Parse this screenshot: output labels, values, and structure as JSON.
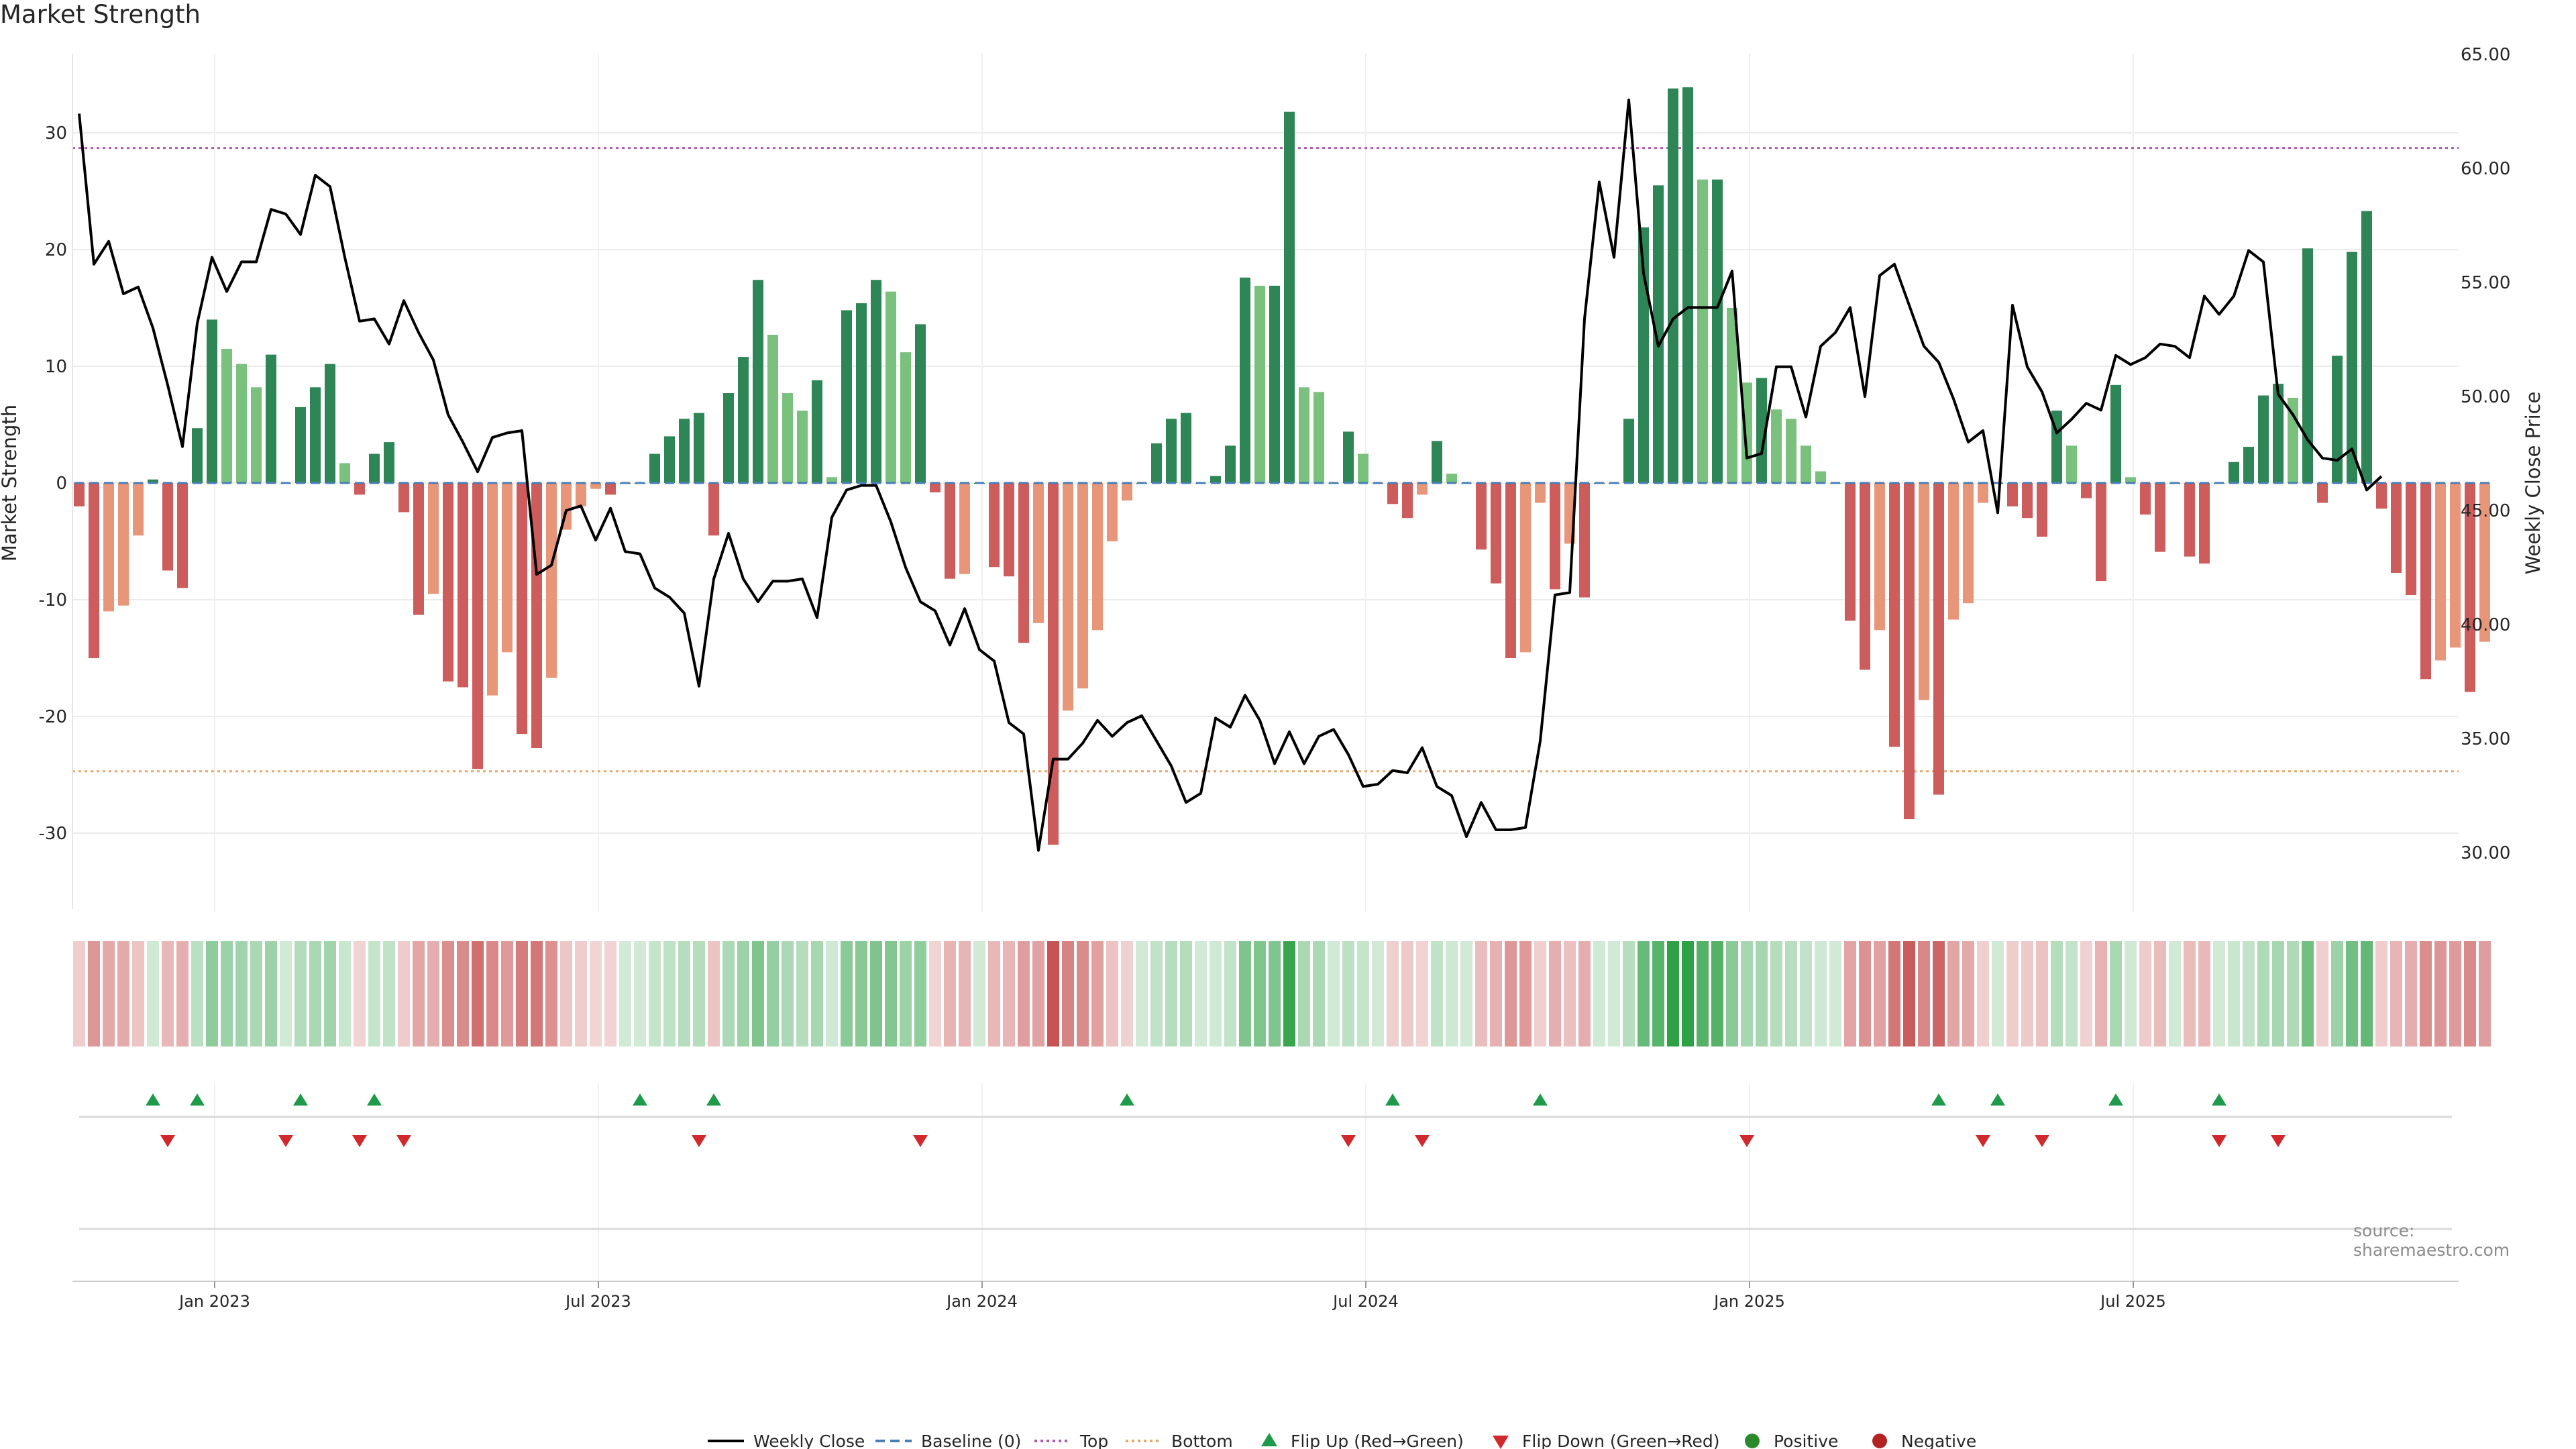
{
  "chart_data": {
    "title": "Market Strength",
    "type": "bar",
    "ylabel_left": "Market Strength",
    "ylabel_right": "Weekly Close Price",
    "ylim_left": [
      -37,
      37
    ],
    "ylim_right": [
      27.5,
      65.0
    ],
    "yticks_left": [
      30,
      20,
      10,
      0,
      -10,
      -20,
      -30
    ],
    "yticks_right": [
      "65.00",
      "60.00",
      "55.00",
      "50.00",
      "45.00",
      "40.00",
      "35.00",
      "30.00"
    ],
    "x_tick_labels": [
      "Jan 2023",
      "Jul 2023",
      "Jan 2024",
      "Jul 2024",
      "Jan 2025",
      "Jul 2025"
    ],
    "x_tick_weeks": [
      9,
      35,
      61,
      87,
      113,
      139
    ],
    "top_line": 28.7,
    "bottom_line": -24.7,
    "strength": [
      -2,
      -15,
      -11,
      -10.5,
      -4.5,
      0.3,
      -7.5,
      -9,
      4.7,
      14,
      11.5,
      10.2,
      8.2,
      11,
      0,
      6.5,
      8.2,
      10.2,
      1.7,
      -1,
      2.5,
      3.5,
      -2.5,
      -11.3,
      -9.5,
      -17,
      -17.5,
      -24.5,
      -18.2,
      -14.5,
      -21.5,
      -22.7,
      -16.7,
      -4,
      -2,
      -0.5,
      -1,
      0,
      0,
      2.5,
      4,
      5.5,
      6,
      -4.5,
      7.7,
      10.8,
      17.4,
      12.7,
      7.7,
      6.2,
      8.8,
      0.5,
      14.8,
      15.4,
      17.4,
      16.4,
      11.2,
      13.6,
      -0.8,
      -8.2,
      -7.8,
      0,
      -7.2,
      -8,
      -13.7,
      -12,
      -31,
      -19.5,
      -17.6,
      -12.6,
      -5,
      -1.5,
      0,
      3.4,
      5.5,
      6,
      0,
      0.6,
      3.2,
      17.6,
      16.9,
      16.9,
      31.8,
      8.2,
      7.8,
      0,
      4.4,
      2.5,
      0,
      -1.8,
      -3,
      -1,
      3.6,
      0.8,
      0,
      -5.7,
      -8.6,
      -15,
      -14.5,
      -1.7,
      -9.1,
      -5.2,
      -9.8,
      0,
      0,
      5.5,
      21.9,
      25.5,
      33.8,
      33.9,
      26,
      26,
      15,
      8.6,
      9,
      6.3,
      5.5,
      3.2,
      1,
      0,
      -11.8,
      -16,
      -12.6,
      -22.6,
      -28.8,
      -18.6,
      -26.7,
      -11.7,
      -10.3,
      -1.7,
      0,
      -2,
      -3,
      -4.6,
      6.2,
      3.2,
      -1.3,
      -8.4,
      8.4,
      0.5,
      -2.7,
      -5.9,
      0,
      -6.3,
      -6.9,
      0,
      1.8,
      3.1,
      7.5,
      8.5,
      7.3,
      20.1,
      -1.7,
      10.9,
      19.8,
      23.3,
      -2.2,
      -7.7,
      -9.6,
      -16.8,
      -15.2,
      -14.1,
      -17.9,
      -13.6
    ],
    "weekly_close": [
      62.4,
      55.8,
      56.8,
      54.5,
      54.8,
      53.0,
      50.5,
      47.8,
      53.2,
      56.1,
      54.6,
      55.9,
      55.9,
      58.2,
      58.0,
      57.1,
      59.7,
      59.2,
      56.1,
      53.3,
      53.4,
      52.3,
      54.2,
      52.8,
      51.6,
      49.2,
      48.0,
      46.7,
      48.2,
      48.4,
      48.5,
      42.2,
      42.6,
      45.0,
      45.2,
      43.7,
      45.1,
      43.2,
      43.1,
      41.6,
      41.2,
      40.5,
      37.3,
      42.0,
      44.0,
      42.0,
      41.0,
      41.9,
      41.9,
      42.0,
      40.3,
      44.7,
      45.9,
      46.1,
      46.1,
      44.5,
      42.5,
      41.0,
      40.6,
      39.1,
      40.7,
      38.9,
      38.4,
      35.7,
      35.2,
      30.1,
      34.1,
      34.1,
      34.8,
      35.8,
      35.1,
      35.7,
      36.0,
      34.9,
      33.8,
      32.2,
      32.6,
      35.9,
      35.5,
      36.9,
      35.8,
      33.9,
      35.3,
      33.9,
      35.1,
      35.4,
      34.3,
      32.9,
      33.0,
      33.6,
      33.5,
      34.6,
      32.9,
      32.5,
      30.7,
      32.2,
      31.0,
      31.0,
      31.1,
      34.9,
      41.3,
      41.4,
      53.4,
      59.4,
      56.1,
      63.0,
      55.4,
      52.2,
      53.4,
      53.9,
      53.9,
      53.9,
      55.5,
      47.3,
      47.5,
      51.3,
      51.3,
      49.1,
      52.2,
      52.8,
      53.9,
      50.0,
      55.3,
      55.8,
      54.0,
      52.2,
      51.5,
      49.9,
      48.0,
      48.5,
      44.9,
      54.0,
      51.3,
      50.2,
      48.4,
      49.0,
      49.7,
      49.4,
      51.8,
      51.4,
      51.7,
      52.3,
      52.2,
      51.7,
      54.4,
      53.6,
      54.4,
      56.4,
      55.9,
      50.1,
      49.2,
      48.1,
      47.3,
      47.2,
      47.7,
      45.9,
      46.5
    ],
    "flip_up_weeks": [
      5,
      8,
      15,
      20,
      38,
      43,
      71,
      89,
      99,
      126,
      130,
      138,
      145
    ],
    "flip_down_weeks": [
      6,
      14,
      19,
      22,
      42,
      57,
      86,
      91,
      113,
      129,
      133,
      145,
      149
    ],
    "legend": [
      "Weekly Close",
      "Baseline (0)",
      "Top",
      "Bottom",
      "Flip Up (Red→Green)",
      "Flip Down (Green→Red)",
      "Positive",
      "Negative"
    ],
    "source": "source: sharemaestro.com"
  },
  "colors": {
    "pos_strong": "#2e8555",
    "pos_light": "#7bc17e",
    "neg_strong": "#cd5c5c",
    "neg_light": "#e8967a",
    "price_line": "#000000",
    "top_line": "#b05ab0",
    "bottom_line": "#e8a86a",
    "baseline": "#4a7eb5",
    "flip_up": "#1f9a4a",
    "flip_down": "#d0282c",
    "positive_dot": "#2a8a2a",
    "negative_dot": "#b22222"
  }
}
